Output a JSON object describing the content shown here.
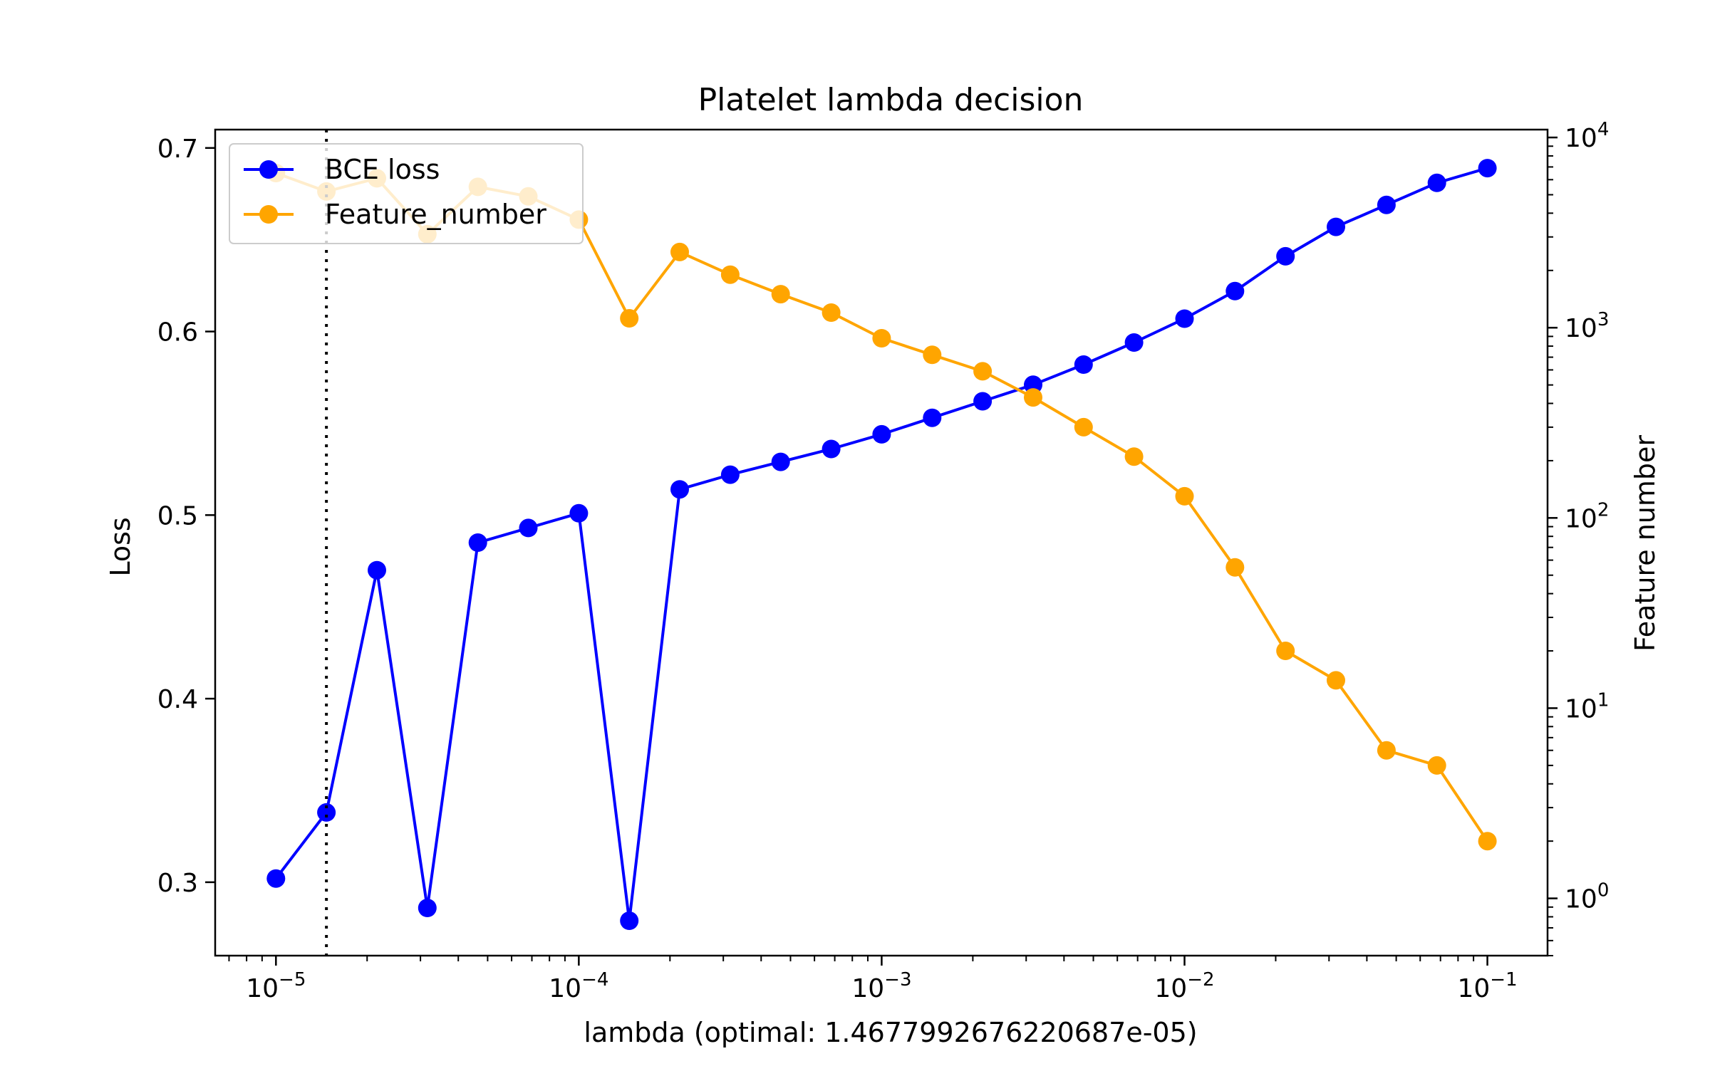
{
  "chart_data": {
    "type": "line",
    "title": "Platelet lambda decision",
    "xlabel": "lambda (optimal: 1.4677992676220687e-05)",
    "ylabel": "Loss",
    "y2label": "Feature number",
    "xscale": "log",
    "y2scale": "log",
    "xlim": [
      6.3e-06,
      0.158
    ],
    "ylim": [
      0.26,
      0.71
    ],
    "y2lim": [
      0.5,
      11000
    ],
    "grid": false,
    "legend_position": "top-left",
    "x_ticks": [
      {
        "value": 1e-05,
        "base": "10",
        "exp": "−5"
      },
      {
        "value": 0.0001,
        "base": "10",
        "exp": "−4"
      },
      {
        "value": 0.001,
        "base": "10",
        "exp": "−3"
      },
      {
        "value": 0.01,
        "base": "10",
        "exp": "−2"
      },
      {
        "value": 0.1,
        "base": "10",
        "exp": "−1"
      }
    ],
    "y_ticks": [
      {
        "value": 0.3,
        "label": "0.3"
      },
      {
        "value": 0.4,
        "label": "0.4"
      },
      {
        "value": 0.5,
        "label": "0.5"
      },
      {
        "value": 0.6,
        "label": "0.6"
      },
      {
        "value": 0.7,
        "label": "0.7"
      }
    ],
    "y2_ticks": [
      {
        "value": 1,
        "base": "10",
        "exp": "0"
      },
      {
        "value": 10,
        "base": "10",
        "exp": "1"
      },
      {
        "value": 100,
        "base": "10",
        "exp": "2"
      },
      {
        "value": 1000,
        "base": "10",
        "exp": "3"
      },
      {
        "value": 10000,
        "base": "10",
        "exp": "4"
      }
    ],
    "optimal_lambda": 1.4677992676220687e-05,
    "x": [
      1e-05,
      1.4678e-05,
      2.1544e-05,
      3.1623e-05,
      4.6416e-05,
      6.8129e-05,
      0.0001,
      0.00014678,
      0.00021544,
      0.00031623,
      0.00046416,
      0.00068129,
      0.001,
      0.0014678,
      0.0021544,
      0.0031623,
      0.0046416,
      0.0068129,
      0.01,
      0.014678,
      0.021544,
      0.031623,
      0.046416,
      0.068129,
      0.1
    ],
    "series": [
      {
        "name": "BCE loss",
        "axis": "left",
        "color": "#0000ff",
        "values": [
          0.302,
          0.338,
          0.47,
          0.286,
          0.485,
          0.493,
          0.501,
          0.279,
          0.514,
          0.522,
          0.529,
          0.536,
          0.544,
          0.553,
          0.562,
          0.571,
          0.582,
          0.594,
          0.607,
          0.622,
          0.641,
          0.657,
          0.669,
          0.681,
          0.689
        ]
      },
      {
        "name": "Feature_number",
        "axis": "right",
        "color": "#ffa500",
        "values": [
          6500,
          5200,
          6100,
          3100,
          5500,
          4900,
          3700,
          1120,
          2500,
          1900,
          1500,
          1200,
          880,
          720,
          590,
          430,
          300,
          210,
          130,
          55,
          20,
          14,
          6,
          5,
          2
        ]
      }
    ]
  }
}
